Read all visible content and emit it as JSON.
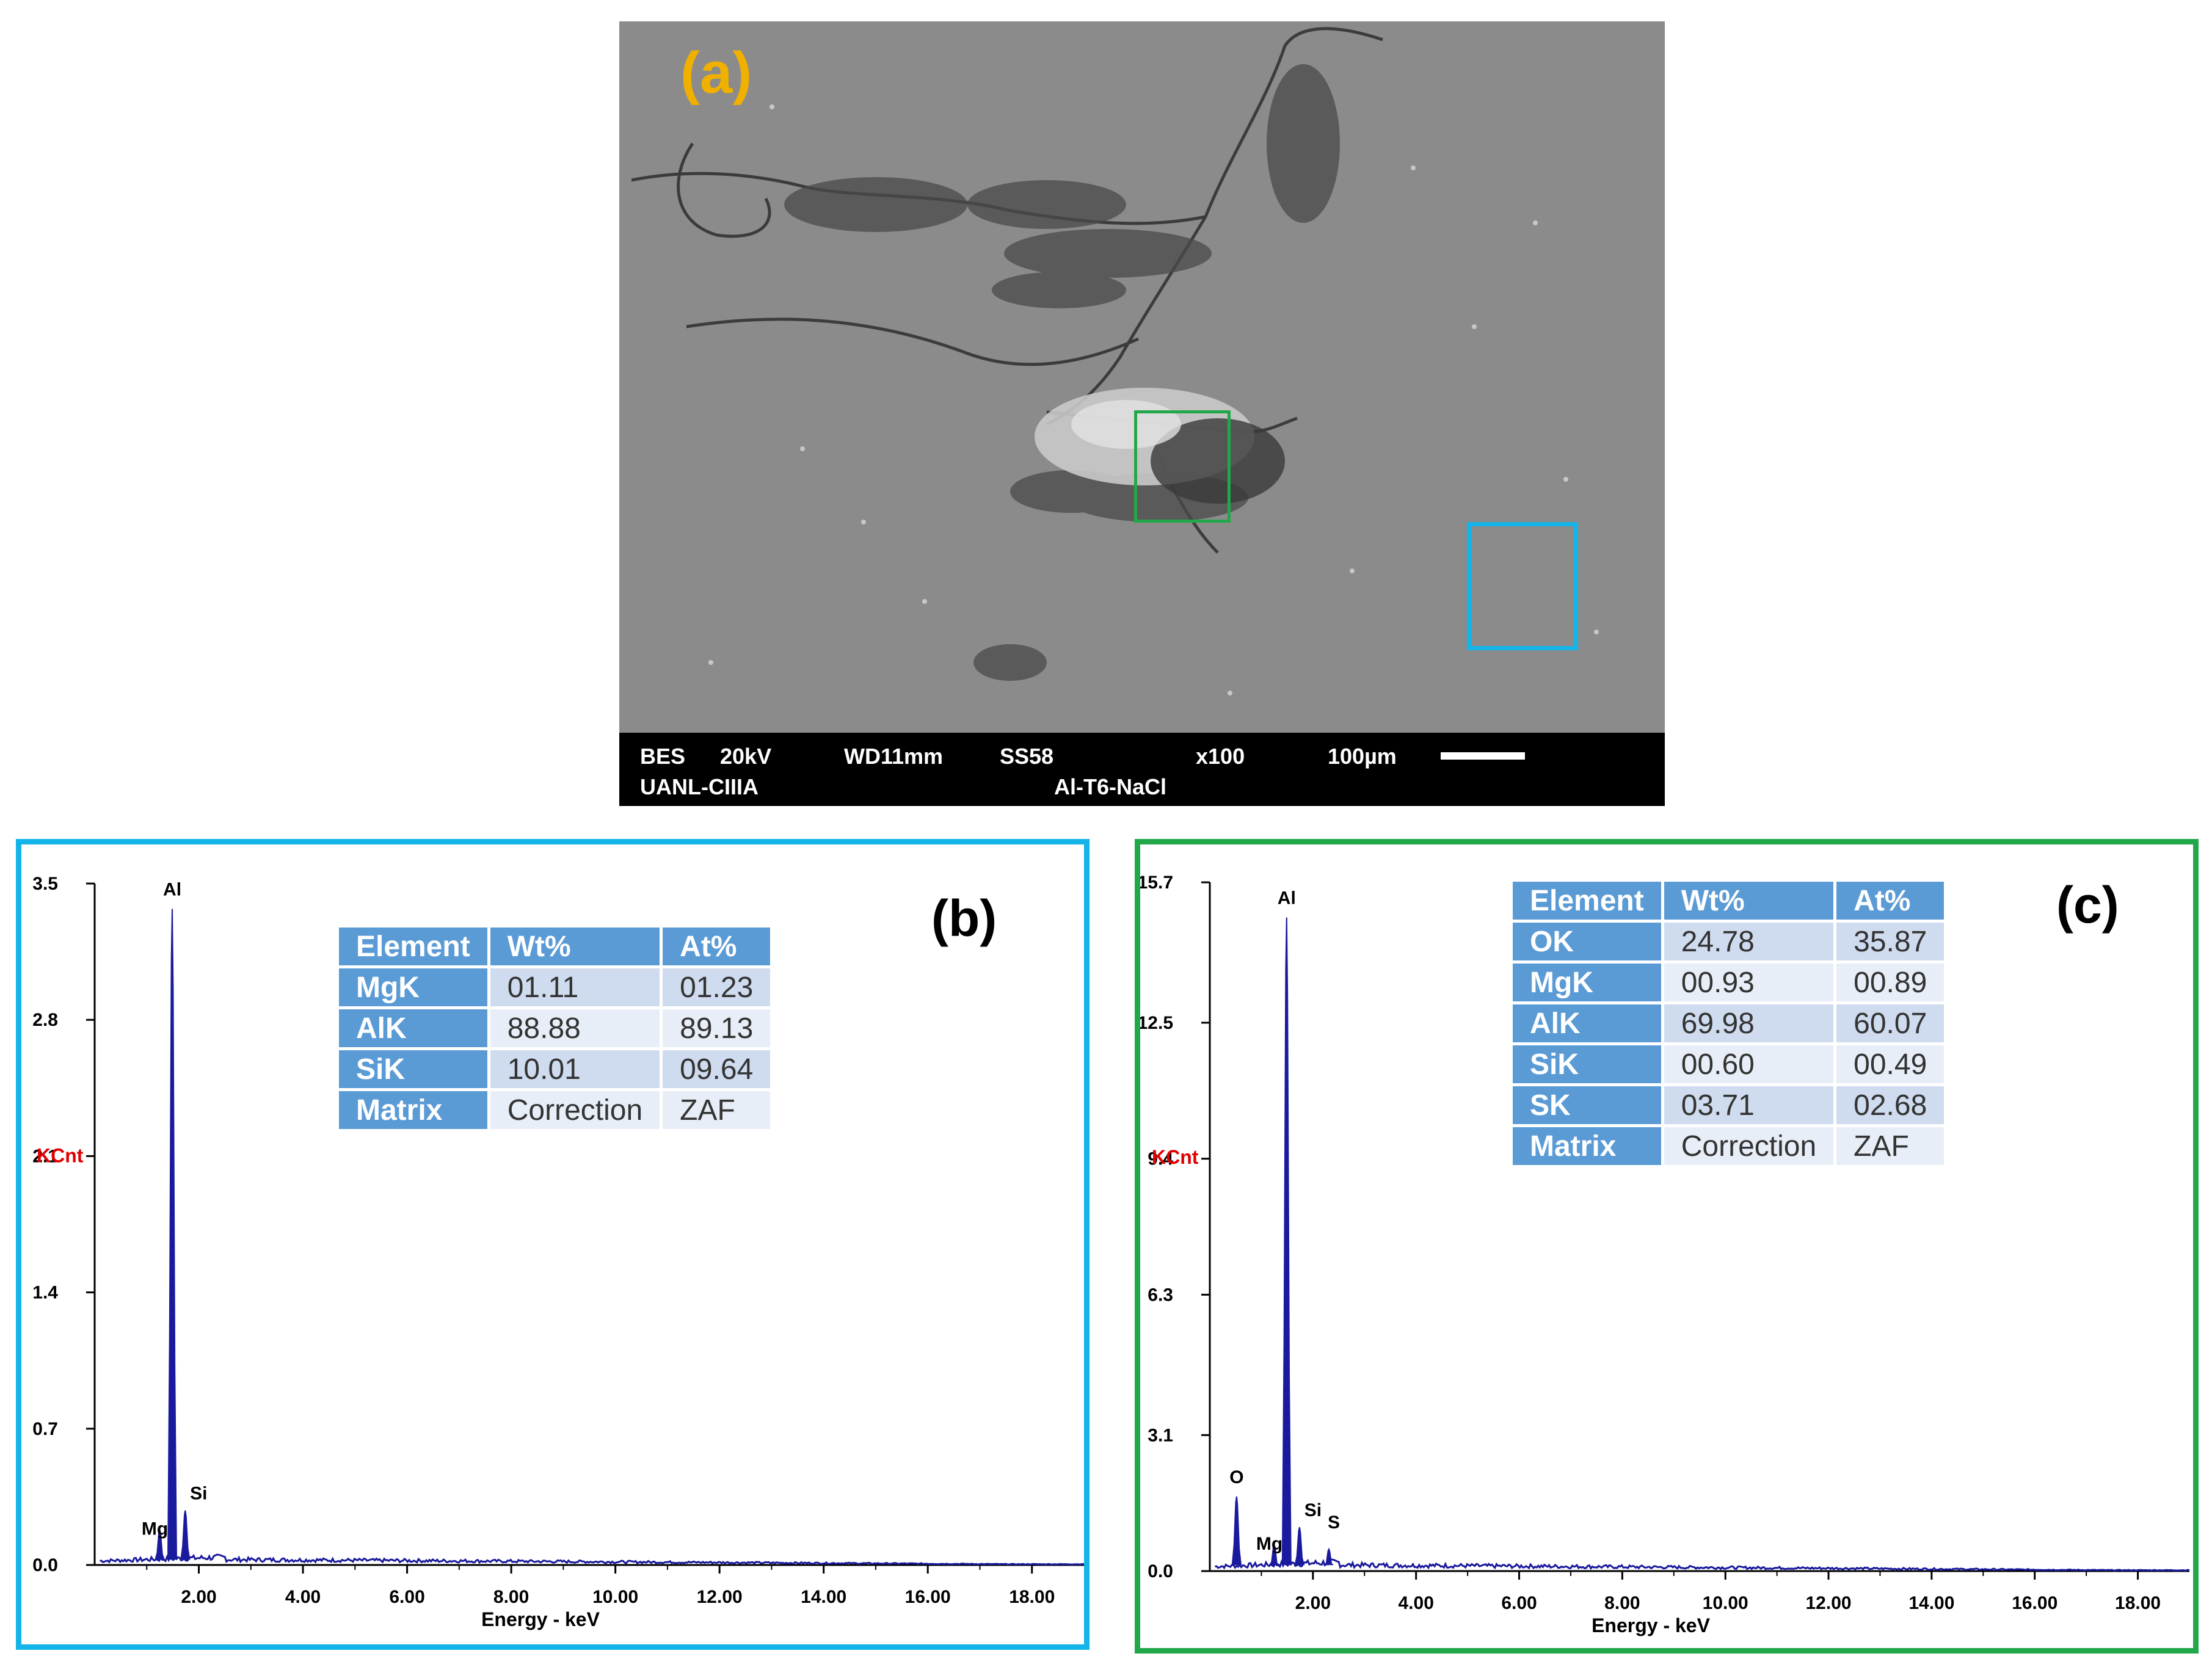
{
  "sem": {
    "panel_label": "(a)",
    "bar_line1": [
      "BES",
      "20kV",
      "WD11mm",
      "SS58",
      "x100",
      "100µm"
    ],
    "bar_line2": [
      "UANL-CIIIA",
      "Al-T6-NaCl"
    ]
  },
  "panel_b": {
    "label": "(b)",
    "table": {
      "headers": [
        "Element",
        "Wt%",
        "At%"
      ],
      "rows": [
        [
          "MgK",
          "01.11",
          "01.23"
        ],
        [
          "AlK",
          "88.88",
          "89.13"
        ],
        [
          "SiK",
          "10.01",
          "09.64"
        ],
        [
          "Matrix",
          "Correction",
          "ZAF"
        ]
      ]
    }
  },
  "panel_c": {
    "label": "(c)",
    "table": {
      "headers": [
        "Element",
        "Wt%",
        "At%"
      ],
      "rows": [
        [
          "OK",
          "24.78",
          "35.87"
        ],
        [
          "MgK",
          "00.93",
          "00.89"
        ],
        [
          "AlK",
          "69.98",
          "60.07"
        ],
        [
          "SiK",
          "00.60",
          "00.49"
        ],
        [
          "SK",
          "03.71",
          "02.68"
        ],
        [
          "Matrix",
          "Correction",
          "ZAF"
        ]
      ]
    }
  },
  "colors": {
    "panel_b_frame": "#14b4e8",
    "panel_c_frame": "#22a84a",
    "spectrum": "#1a1a9e",
    "ylabel": "#e00000",
    "panel_a_label": "#f0b000"
  },
  "chart_data": [
    {
      "type": "line",
      "panel": "(b)",
      "xlabel": "Energy - keV",
      "ylabel": "KCnt",
      "xlim": [
        0,
        19.0
      ],
      "ylim": [
        0,
        3.5
      ],
      "x_ticks": [
        "2.00",
        "4.00",
        "6.00",
        "8.00",
        "10.00",
        "12.00",
        "14.00",
        "16.00",
        "18.00"
      ],
      "y_ticks": [
        "0.0",
        "0.7",
        "1.4",
        "2.1",
        "2.8",
        "3.5"
      ],
      "peaks": [
        {
          "label": "Mg",
          "energy": 1.25,
          "value": 0.18
        },
        {
          "label": "Al",
          "energy": 1.49,
          "value": 3.37
        },
        {
          "label": "Si",
          "energy": 1.74,
          "value": 0.28
        }
      ],
      "background_level": 0.02,
      "grid": false
    },
    {
      "type": "line",
      "panel": "(c)",
      "xlabel": "Energy - keV",
      "ylabel": "KCnt",
      "xlim": [
        0,
        19.0
      ],
      "ylim": [
        0,
        15.7
      ],
      "x_ticks": [
        "2.00",
        "4.00",
        "6.00",
        "8.00",
        "10.00",
        "12.00",
        "14.00",
        "16.00",
        "18.00"
      ],
      "y_ticks": [
        "0.0",
        "3.1",
        "6.3",
        "9.4",
        "12.5",
        "15.7"
      ],
      "peaks": [
        {
          "label": "O",
          "energy": 0.52,
          "value": 1.7
        },
        {
          "label": "Mg",
          "energy": 1.25,
          "value": 0.6
        },
        {
          "label": "Al",
          "energy": 1.49,
          "value": 14.9
        },
        {
          "label": "Si",
          "energy": 1.74,
          "value": 1.0
        },
        {
          "label": "S",
          "energy": 2.31,
          "value": 0.5
        }
      ],
      "background_level": 0.1,
      "grid": false
    }
  ]
}
